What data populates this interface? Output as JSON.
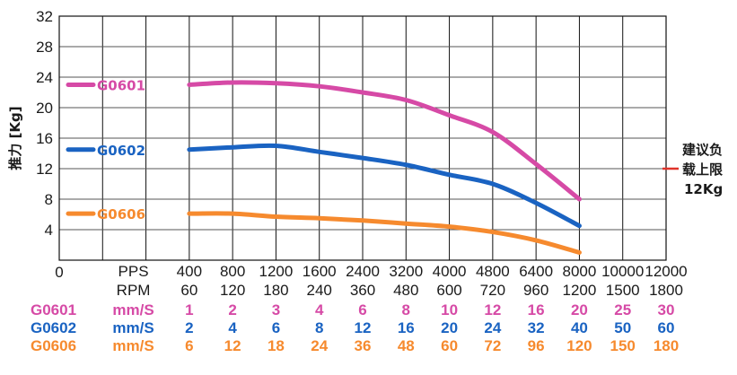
{
  "chart_data": {
    "type": "line",
    "ylabel": "推力 [Kg]",
    "y_ticks": [
      "32",
      "28",
      "24",
      "20",
      "16",
      "12",
      "8",
      "4",
      "0"
    ],
    "ylim": [
      0,
      32
    ],
    "x_index_range": [
      0,
      14
    ],
    "pps_label": "PPS",
    "rpm_label": "RPM",
    "pps": [
      "400",
      "800",
      "1200",
      "1600",
      "2400",
      "3200",
      "4000",
      "4800",
      "6400",
      "8000",
      "10000",
      "12000"
    ],
    "rpm": [
      "60",
      "120",
      "180",
      "240",
      "360",
      "480",
      "600",
      "720",
      "960",
      "1200",
      "1500",
      "1800"
    ],
    "unit_label": "mm/S",
    "series": [
      {
        "name": "G0601",
        "color": "#d64aa6",
        "x_index": [
          3,
          4,
          5,
          6,
          7,
          8,
          9,
          10,
          11,
          12
        ],
        "values": [
          23.0,
          23.3,
          23.2,
          22.8,
          22.0,
          21.0,
          19.0,
          16.8,
          12.6,
          8.0
        ],
        "speeds": [
          "1",
          "2",
          "3",
          "4",
          "6",
          "8",
          "10",
          "12",
          "16",
          "20",
          "25",
          "30"
        ]
      },
      {
        "name": "G0602",
        "color": "#1a63c2",
        "x_index": [
          3,
          4,
          5,
          6,
          7,
          8,
          9,
          10,
          11,
          12
        ],
        "values": [
          14.5,
          14.8,
          15.0,
          14.2,
          13.4,
          12.5,
          11.2,
          10.0,
          7.5,
          4.5
        ],
        "speeds": [
          "2",
          "4",
          "6",
          "8",
          "12",
          "16",
          "20",
          "24",
          "32",
          "40",
          "50",
          "60"
        ]
      },
      {
        "name": "G0606",
        "color": "#f68a2e",
        "x_index": [
          3,
          4,
          5,
          6,
          7,
          8,
          9,
          10,
          11,
          12
        ],
        "values": [
          6.1,
          6.1,
          5.7,
          5.5,
          5.2,
          4.8,
          4.4,
          3.7,
          2.6,
          1.0
        ],
        "speeds": [
          "6",
          "12",
          "18",
          "24",
          "36",
          "48",
          "60",
          "72",
          "96",
          "120",
          "150",
          "180"
        ]
      }
    ],
    "annotation": {
      "line1": "建议负",
      "line2": "载上限",
      "line3": "12Kg",
      "value": 12,
      "color": "#e0332a"
    }
  }
}
